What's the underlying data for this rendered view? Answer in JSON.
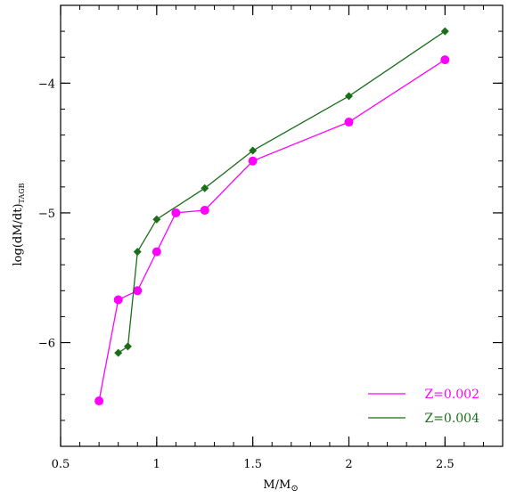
{
  "chart_data": {
    "type": "line",
    "title": "",
    "xlabel": "M/M",
    "xlabel_sub": "⊙",
    "ylabel": "log(dM/dt)",
    "ylabel_sub": "TAGB",
    "xlim": [
      0.5,
      2.8
    ],
    "ylim": [
      -6.8,
      -3.4
    ],
    "x_ticks": [
      0.5,
      1,
      1.5,
      2,
      2.5
    ],
    "x_tick_labels": [
      "0.5",
      "1",
      "1.5",
      "2",
      "2.5"
    ],
    "y_ticks": [
      -6,
      -5,
      -4
    ],
    "y_tick_labels": [
      "−6",
      "−5",
      "−4"
    ],
    "x_minor_step": 0.1,
    "y_minor_step": 0.2,
    "grid": false,
    "legend_position": "bottom-right",
    "series": [
      {
        "name": "Z=0.002",
        "color": "#ff00ff",
        "marker": "circle",
        "x": [
          0.7,
          0.8,
          0.9,
          1.0,
          1.1,
          1.25,
          1.5,
          2.0,
          2.5
        ],
        "y": [
          -6.45,
          -5.67,
          -5.6,
          -5.3,
          -5.0,
          -4.98,
          -4.6,
          -4.3,
          -3.82
        ]
      },
      {
        "name": "Z=0.004",
        "color": "#1a6e1a",
        "marker": "diamond",
        "x": [
          0.8,
          0.85,
          0.9,
          1.0,
          1.25,
          1.5,
          2.0,
          2.5
        ],
        "y": [
          -6.08,
          -6.03,
          -5.3,
          -5.05,
          -4.81,
          -4.52,
          -4.1,
          -3.6
        ]
      }
    ]
  }
}
